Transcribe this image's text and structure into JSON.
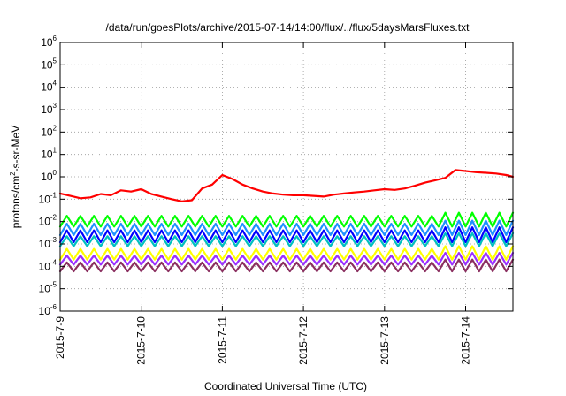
{
  "chart_data": {
    "type": "line",
    "title": "/data/run/goesPlots/archive/2015-07-14/14:00/flux/../flux/5daysMarsFluxes.txt",
    "xlabel": "Coordinated Universal Time (UTC)",
    "ylabel": {
      "prefix": "protons/cm",
      "superscript": "2",
      "suffix": "-s-sr-MeV"
    },
    "y_scale": "log",
    "ylim": [
      1e-06,
      1000000.0
    ],
    "y_ticks": [
      {
        "value": 1e-06,
        "base": "10",
        "exp": "-6"
      },
      {
        "value": 1e-05,
        "base": "10",
        "exp": "-5"
      },
      {
        "value": 0.0001,
        "base": "10",
        "exp": "-4"
      },
      {
        "value": 0.001,
        "base": "10",
        "exp": "-3"
      },
      {
        "value": 0.01,
        "base": "10",
        "exp": "-2"
      },
      {
        "value": 0.1,
        "base": "10",
        "exp": "-1"
      },
      {
        "value": 1,
        "base": "10",
        "exp": "0"
      },
      {
        "value": 10,
        "base": "10",
        "exp": "1"
      },
      {
        "value": 100,
        "base": "10",
        "exp": "2"
      },
      {
        "value": 1000,
        "base": "10",
        "exp": "3"
      },
      {
        "value": 10000,
        "base": "10",
        "exp": "4"
      },
      {
        "value": 100000,
        "base": "10",
        "exp": "5"
      },
      {
        "value": 1000000,
        "base": "10",
        "exp": "6"
      }
    ],
    "x_scale": "date",
    "xlim": [
      "2015-07-09 00:00",
      "2015-07-14 14:00"
    ],
    "x_ticks": [
      {
        "value": "2015-07-09",
        "label": "2015-7-9"
      },
      {
        "value": "2015-07-10",
        "label": "2015-7-10"
      },
      {
        "value": "2015-07-11",
        "label": "2015-7-11"
      },
      {
        "value": "2015-07-12",
        "label": "2015-7-12"
      },
      {
        "value": "2015-07-13",
        "label": "2015-7-13"
      },
      {
        "value": "2015-07-14",
        "label": "2015-7-14"
      }
    ],
    "grid": true,
    "series": [
      {
        "color": "#ff0000",
        "pattern": "smooth",
        "points": [
          [
            "2015-07-09 00:00",
            0.18
          ],
          [
            "2015-07-09 03:00",
            0.14
          ],
          [
            "2015-07-09 06:00",
            0.11
          ],
          [
            "2015-07-09 09:00",
            0.12
          ],
          [
            "2015-07-09 12:00",
            0.17
          ],
          [
            "2015-07-09 15:00",
            0.15
          ],
          [
            "2015-07-09 18:00",
            0.25
          ],
          [
            "2015-07-09 21:00",
            0.22
          ],
          [
            "2015-07-10 00:00",
            0.28
          ],
          [
            "2015-07-10 03:00",
            0.17
          ],
          [
            "2015-07-10 06:00",
            0.13
          ],
          [
            "2015-07-10 09:00",
            0.1
          ],
          [
            "2015-07-10 12:00",
            0.08
          ],
          [
            "2015-07-10 15:00",
            0.09
          ],
          [
            "2015-07-10 18:00",
            0.3
          ],
          [
            "2015-07-10 21:00",
            0.45
          ],
          [
            "2015-07-11 00:00",
            1.2
          ],
          [
            "2015-07-11 03:00",
            0.8
          ],
          [
            "2015-07-11 06:00",
            0.45
          ],
          [
            "2015-07-11 09:00",
            0.3
          ],
          [
            "2015-07-11 12:00",
            0.22
          ],
          [
            "2015-07-11 15:00",
            0.18
          ],
          [
            "2015-07-11 18:00",
            0.16
          ],
          [
            "2015-07-11 21:00",
            0.15
          ],
          [
            "2015-07-12 00:00",
            0.15
          ],
          [
            "2015-07-12 03:00",
            0.14
          ],
          [
            "2015-07-12 06:00",
            0.13
          ],
          [
            "2015-07-12 09:00",
            0.16
          ],
          [
            "2015-07-12 12:00",
            0.18
          ],
          [
            "2015-07-12 15:00",
            0.2
          ],
          [
            "2015-07-12 18:00",
            0.22
          ],
          [
            "2015-07-12 21:00",
            0.25
          ],
          [
            "2015-07-13 00:00",
            0.28
          ],
          [
            "2015-07-13 03:00",
            0.26
          ],
          [
            "2015-07-13 06:00",
            0.3
          ],
          [
            "2015-07-13 09:00",
            0.4
          ],
          [
            "2015-07-13 12:00",
            0.55
          ],
          [
            "2015-07-13 15:00",
            0.7
          ],
          [
            "2015-07-13 18:00",
            0.9
          ],
          [
            "2015-07-13 21:00",
            2.0
          ],
          [
            "2015-07-14 00:00",
            1.8
          ],
          [
            "2015-07-14 03:00",
            1.6
          ],
          [
            "2015-07-14 06:00",
            1.5
          ],
          [
            "2015-07-14 09:00",
            1.4
          ],
          [
            "2015-07-14 12:00",
            1.2
          ],
          [
            "2015-07-14 14:00",
            1.0
          ]
        ]
      },
      {
        "color": "#00ff00",
        "pattern": "sawtooth",
        "period_hours": 4,
        "low": 0.006,
        "high": 0.018,
        "late_high": 0.025
      },
      {
        "color": "#1e90ff",
        "pattern": "sawtooth",
        "period_hours": 4,
        "low": 0.0025,
        "high": 0.008,
        "late_high": 0.011
      },
      {
        "color": "#0000ff",
        "pattern": "sawtooth",
        "period_hours": 4,
        "low": 0.0012,
        "high": 0.004,
        "late_high": 0.0055
      },
      {
        "color": "#00c0c0",
        "pattern": "sawtooth",
        "period_hours": 4,
        "low": 0.0008,
        "high": 0.0022,
        "late_high": 0.003
      },
      {
        "color": "#ffff00",
        "pattern": "sawtooth",
        "period_hours": 4,
        "low": 0.0002,
        "high": 0.0006,
        "late_high": 0.0008
      },
      {
        "color": "#9b30ff",
        "pattern": "sawtooth",
        "period_hours": 4,
        "low": 0.00012,
        "high": 0.0003,
        "late_high": 0.0004
      },
      {
        "color": "#8b3060",
        "pattern": "sawtooth",
        "period_hours": 4,
        "low": 6e-05,
        "high": 0.00015,
        "late_high": 0.0002
      }
    ]
  }
}
